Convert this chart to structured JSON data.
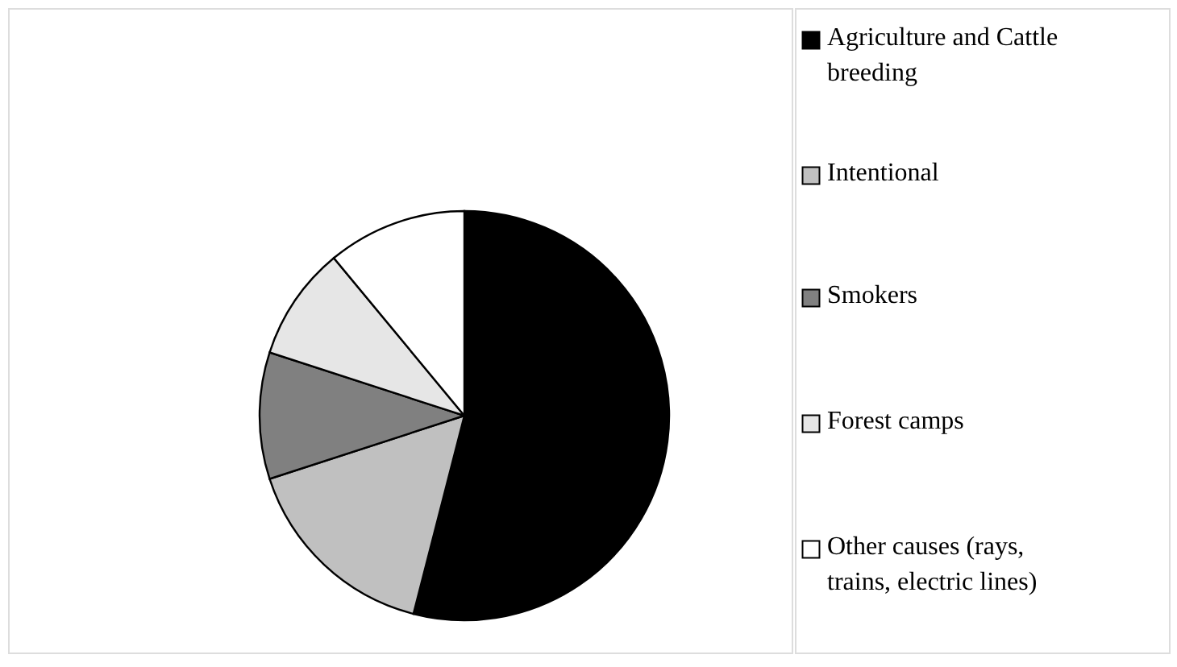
{
  "chart_data": {
    "type": "pie",
    "categories": [
      "Agriculture and Cattle breeding",
      "Intentional",
      "Smokers",
      "Forest camps",
      "Other causes (rays, trains, electric lines)"
    ],
    "values": [
      54,
      16,
      10,
      9,
      11
    ],
    "colors": [
      "#000000",
      "#c0c0c0",
      "#808080",
      "#e6e6e6",
      "#ffffff"
    ],
    "legend": "right"
  }
}
